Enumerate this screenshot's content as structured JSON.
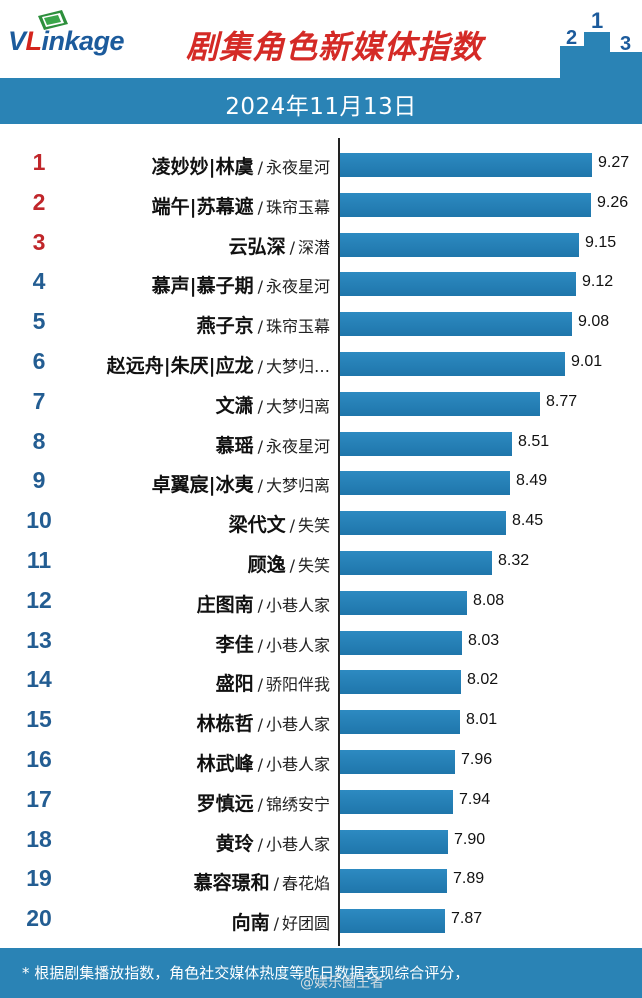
{
  "header": {
    "logo": "VLinkage",
    "logo_parts": {
      "v": "V",
      "l": "L",
      "rest": "inkage"
    },
    "title": "剧集角色新媒体指数",
    "podium": [
      "2",
      "1",
      "3"
    ],
    "date": "2024年11月13日"
  },
  "colors": {
    "brand_blue": "#2a83b5",
    "bar_blue": "#2181b8",
    "title_red": "#d42a26",
    "rank_top_red": "#c0262a",
    "rank_blue": "#235d92"
  },
  "chart_data": {
    "type": "bar",
    "orientation": "horizontal",
    "title": "剧集角色新媒体指数",
    "xlim": [
      0,
      9.5
    ],
    "grid": false,
    "rows": [
      {
        "rank": "1",
        "name": "凌妙妙|林虞",
        "show": "永夜星河",
        "value": 9.27,
        "value_label": "9.27"
      },
      {
        "rank": "2",
        "name": "端午|苏幕遮",
        "show": "珠帘玉幕",
        "value": 9.26,
        "value_label": "9.26"
      },
      {
        "rank": "3",
        "name": "云弘深",
        "show": "深潜",
        "value": 9.15,
        "value_label": "9.15"
      },
      {
        "rank": "4",
        "name": "慕声|慕子期",
        "show": "永夜星河",
        "value": 9.12,
        "value_label": "9.12"
      },
      {
        "rank": "5",
        "name": "燕子京",
        "show": "珠帘玉幕",
        "value": 9.08,
        "value_label": "9.08"
      },
      {
        "rank": "6",
        "name": "赵远舟|朱厌|应龙",
        "show": "大梦归…",
        "value": 9.01,
        "value_label": "9.01"
      },
      {
        "rank": "7",
        "name": "文潇",
        "show": "大梦归离",
        "value": 8.77,
        "value_label": "8.77"
      },
      {
        "rank": "8",
        "name": "慕瑶",
        "show": "永夜星河",
        "value": 8.51,
        "value_label": "8.51"
      },
      {
        "rank": "9",
        "name": "卓翼宸|冰夷",
        "show": "大梦归离",
        "value": 8.49,
        "value_label": "8.49"
      },
      {
        "rank": "10",
        "name": "梁代文",
        "show": "失笑",
        "value": 8.45,
        "value_label": "8.45"
      },
      {
        "rank": "11",
        "name": "顾逸",
        "show": "失笑",
        "value": 8.32,
        "value_label": "8.32"
      },
      {
        "rank": "12",
        "name": "庄图南",
        "show": "小巷人家",
        "value": 8.08,
        "value_label": "8.08"
      },
      {
        "rank": "13",
        "name": "李佳",
        "show": "小巷人家",
        "value": 8.03,
        "value_label": "8.03"
      },
      {
        "rank": "14",
        "name": "盛阳",
        "show": "骄阳伴我",
        "value": 8.02,
        "value_label": "8.02"
      },
      {
        "rank": "15",
        "name": "林栋哲",
        "show": "小巷人家",
        "value": 8.01,
        "value_label": "8.01"
      },
      {
        "rank": "16",
        "name": "林武峰",
        "show": "小巷人家",
        "value": 7.96,
        "value_label": "7.96"
      },
      {
        "rank": "17",
        "name": "罗慎远",
        "show": "锦绣安宁",
        "value": 7.94,
        "value_label": "7.94"
      },
      {
        "rank": "18",
        "name": "黄玲",
        "show": "小巷人家",
        "value": 7.9,
        "value_label": "7.90"
      },
      {
        "rank": "19",
        "name": "慕容璟和",
        "show": "春花焰",
        "value": 7.89,
        "value_label": "7.89"
      },
      {
        "rank": "20",
        "name": "向南",
        "show": "好团圆",
        "value": 7.87,
        "value_label": "7.87"
      }
    ]
  },
  "footer": {
    "note": "* 根据剧集播放指数，角色社交媒体热度等昨日数据表现综合评分，",
    "watermark": "@娱乐圈王者"
  }
}
